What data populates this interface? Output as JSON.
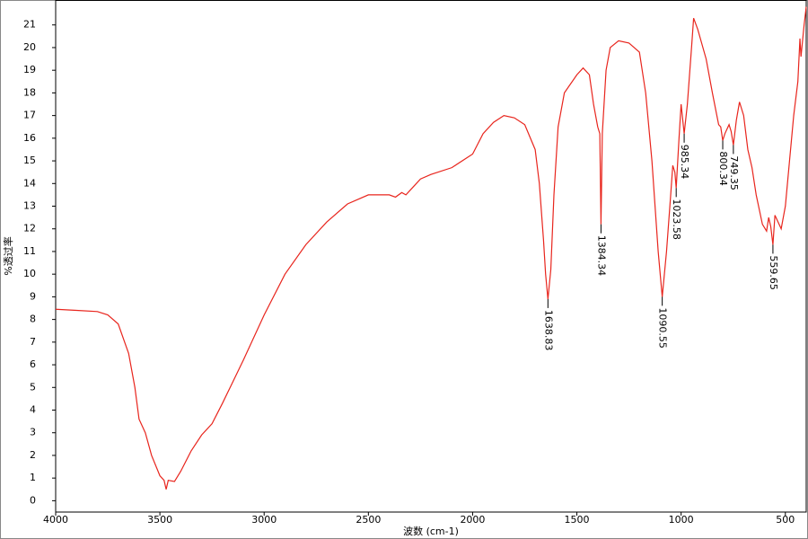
{
  "chart_data": {
    "type": "line",
    "xlabel": "波数 (cm-1)",
    "ylabel": "%透过率",
    "color": "#e8251d",
    "xlim": [
      4000,
      400
    ],
    "ylim": [
      -0.5,
      22.1
    ],
    "xticks": [
      4000,
      3500,
      3000,
      2500,
      2000,
      1500,
      1000,
      500
    ],
    "yticks": [
      0,
      1,
      2,
      3,
      4,
      5,
      6,
      7,
      8,
      9,
      10,
      11,
      12,
      13,
      14,
      15,
      16,
      17,
      18,
      19,
      20,
      21
    ],
    "x": [
      4000,
      3900,
      3800,
      3750,
      3700,
      3650,
      3620,
      3600,
      3570,
      3540,
      3500,
      3480,
      3470,
      3460,
      3430,
      3400,
      3350,
      3300,
      3250,
      3200,
      3100,
      3000,
      2900,
      2800,
      2700,
      2600,
      2500,
      2400,
      2370,
      2340,
      2320,
      2280,
      2250,
      2200,
      2100,
      2000,
      1950,
      1900,
      1850,
      1800,
      1750,
      1700,
      1680,
      1660,
      1650,
      1638.83,
      1625,
      1610,
      1590,
      1560,
      1500,
      1470,
      1440,
      1420,
      1400,
      1390,
      1384.34,
      1378,
      1360,
      1340,
      1300,
      1250,
      1200,
      1170,
      1140,
      1110,
      1090.55,
      1070,
      1050,
      1040,
      1030,
      1023.58,
      1010,
      1000,
      985.34,
      970,
      950,
      940,
      920,
      880,
      850,
      820,
      810,
      800.34,
      790,
      770,
      760,
      749.35,
      735,
      720,
      700,
      680,
      660,
      640,
      610,
      590,
      580,
      570,
      559.65,
      550,
      540,
      520,
      500,
      480,
      460,
      440,
      430,
      425,
      410,
      400
    ],
    "values": [
      8.45,
      8.4,
      8.35,
      8.2,
      7.8,
      6.5,
      5.0,
      3.6,
      3.0,
      2.0,
      1.1,
      0.9,
      0.5,
      0.9,
      0.85,
      1.3,
      2.2,
      2.9,
      3.4,
      4.3,
      6.2,
      8.2,
      10.0,
      11.3,
      12.3,
      13.1,
      13.5,
      13.5,
      13.4,
      13.6,
      13.5,
      13.9,
      14.2,
      14.4,
      14.7,
      15.3,
      16.2,
      16.7,
      17.0,
      16.9,
      16.6,
      15.5,
      14.0,
      11.5,
      10.0,
      8.9,
      10.2,
      13.5,
      16.5,
      18.0,
      18.8,
      19.1,
      18.8,
      17.5,
      16.5,
      16.2,
      12.2,
      16.2,
      19.0,
      20.0,
      20.3,
      20.2,
      19.8,
      18.0,
      15.0,
      11.0,
      9.0,
      11.0,
      13.5,
      14.8,
      14.5,
      13.8,
      16.0,
      17.5,
      16.2,
      17.5,
      20.0,
      21.3,
      20.8,
      19.5,
      18.0,
      16.6,
      16.5,
      15.9,
      16.2,
      16.6,
      16.3,
      15.7,
      16.8,
      17.6,
      17.0,
      15.5,
      14.7,
      13.5,
      12.2,
      11.9,
      12.5,
      12.1,
      11.3,
      12.6,
      12.4,
      12.0,
      13.0,
      15.0,
      17.0,
      18.5,
      20.4,
      19.6,
      21.0,
      21.8
    ],
    "peaks": [
      1638.83,
      1384.34,
      1090.55,
      1023.58,
      985.34,
      800.34,
      749.35,
      559.65
    ]
  }
}
